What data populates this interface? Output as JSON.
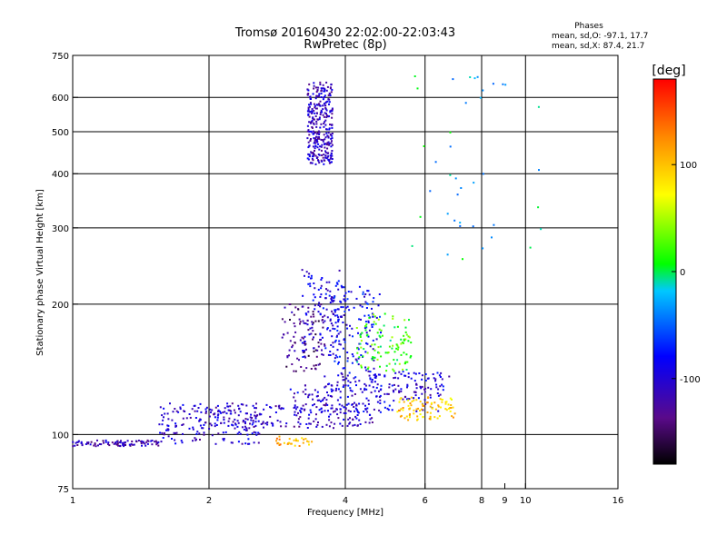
{
  "chart_data": {
    "type": "scatter",
    "title": "Tromsø 20160430 22:02:00-22:03:43",
    "subtitle": "RwPretec (8p)",
    "xlabel": "Frequency [MHz]",
    "ylabel": "Stationary phase Virtual Height [km]",
    "x_scale": "log",
    "y_scale": "log",
    "xlim": [
      1,
      16
    ],
    "ylim": [
      75,
      750
    ],
    "x_ticks": [
      1,
      2,
      4,
      6,
      8,
      10,
      16
    ],
    "x_minor_ticks": [
      9
    ],
    "y_ticks": [
      75,
      100,
      200,
      300,
      400,
      500,
      600,
      750
    ],
    "x_gridlines": [
      2,
      4,
      6,
      8,
      10
    ],
    "y_gridlines": [
      100,
      200,
      300,
      400,
      500,
      600
    ],
    "colorbar": {
      "label": "[deg]",
      "ticks": [
        100,
        0,
        -100
      ],
      "range": [
        -180,
        180
      ],
      "colormap": "rainbow"
    },
    "phase_stats": {
      "header": "Phases",
      "o_line": "mean, sd,O: -97.1, 17.7",
      "x_line": "mean, sd,X:  87.4, 21.7"
    },
    "clusters": [
      {
        "x": [
          1.0,
          1.55
        ],
        "y": [
          94,
          97
        ],
        "n": 90,
        "phase": -115
      },
      {
        "x": [
          1.55,
          2.6
        ],
        "y": [
          95,
          118
        ],
        "n": 170,
        "phase": -105
      },
      {
        "x": [
          2.0,
          4.6
        ],
        "y": [
          103,
          118
        ],
        "n": 180,
        "phase": -110
      },
      {
        "x": [
          3.0,
          6.5
        ],
        "y": [
          112,
          130
        ],
        "n": 140,
        "phase": -100
      },
      {
        "x": [
          3.6,
          6.8
        ],
        "y": [
          125,
          140
        ],
        "n": 120,
        "phase": -95
      },
      {
        "x": [
          5.2,
          7.0
        ],
        "y": [
          108,
          122
        ],
        "n": 90,
        "phase": 95
      },
      {
        "x": [
          2.9,
          3.6
        ],
        "y": [
          140,
          200
        ],
        "n": 90,
        "phase": -135
      },
      {
        "x": [
          3.2,
          4.0
        ],
        "y": [
          150,
          240
        ],
        "n": 130,
        "phase": -95
      },
      {
        "x": [
          3.7,
          4.8
        ],
        "y": [
          140,
          220
        ],
        "n": 130,
        "phase": -85
      },
      {
        "x": [
          4.2,
          5.6
        ],
        "y": [
          140,
          190
        ],
        "n": 110,
        "phase": 20
      },
      {
        "x": [
          3.3,
          3.75
        ],
        "y": [
          420,
          650
        ],
        "n": 320,
        "phase": -110
      },
      {
        "x": [
          2.8,
          3.4
        ],
        "y": [
          94,
          99
        ],
        "n": 30,
        "phase": 110
      },
      {
        "x": [
          5.6,
          11.0
        ],
        "y": [
          250,
          680
        ],
        "n": 40,
        "phase": -20
      }
    ]
  }
}
